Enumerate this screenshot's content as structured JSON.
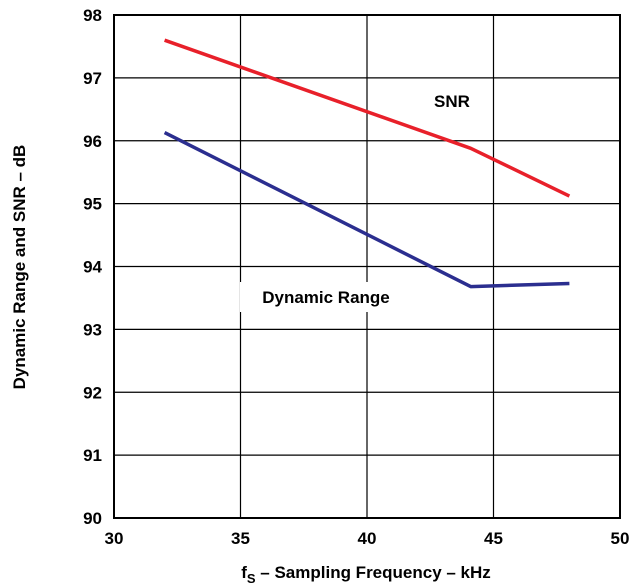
{
  "chart_data": {
    "type": "line",
    "xlabel": {
      "main": "f",
      "sub": "S",
      "rest": " – Sampling Frequency – kHz"
    },
    "ylabel": "Dynamic Range and SNR – dB",
    "xlim": [
      30,
      50
    ],
    "ylim": [
      90,
      98
    ],
    "xticks": [
      "30",
      "35",
      "40",
      "45",
      "50"
    ],
    "yticks": [
      "90",
      "91",
      "92",
      "93",
      "94",
      "95",
      "96",
      "97",
      "98"
    ],
    "grid": true,
    "series": [
      {
        "name": "SNR",
        "color": "#e8202a",
        "points": [
          [
            32,
            97.6
          ],
          [
            44.1,
            95.88
          ],
          [
            48,
            95.12
          ]
        ]
      },
      {
        "name": "Dynamic Range",
        "color": "#2b2e8f",
        "points": [
          [
            32,
            96.13
          ],
          [
            44.1,
            93.68
          ],
          [
            48,
            93.73
          ]
        ]
      }
    ]
  }
}
